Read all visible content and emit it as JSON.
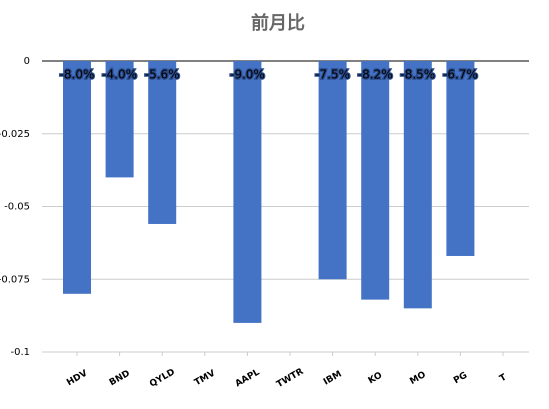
{
  "chart_data": {
    "type": "bar",
    "title": "前月比",
    "categories": [
      "HDV",
      "BND",
      "QYLD",
      "TMV",
      "AAPL",
      "TWTR",
      "IBM",
      "KO",
      "MO",
      "PG",
      "T"
    ],
    "values": [
      -0.08,
      -0.04,
      -0.056,
      null,
      -0.09,
      null,
      -0.075,
      -0.082,
      -0.085,
      -0.067,
      null
    ],
    "value_labels": [
      "-8.0%",
      "-4.0%",
      "-5.6%",
      null,
      "-9.0%",
      null,
      "-7.5%",
      "-8.2%",
      "-8.5%",
      "-6.7%",
      null
    ],
    "color": "#4472c4",
    "ylim": [
      -0.1,
      0
    ],
    "yticks": [
      0,
      -0.025,
      -0.05,
      -0.075,
      -0.1
    ],
    "grid": true
  }
}
